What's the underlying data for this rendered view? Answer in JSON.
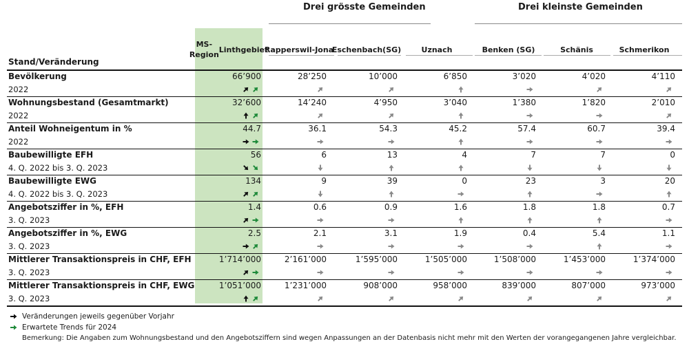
{
  "groups": {
    "largest": "Drei grösste Gemeinden",
    "smallest": "Drei kleinste Gemeinden"
  },
  "header": {
    "stand": "Stand/Veränderung",
    "columns": [
      {
        "line1": "MS-Region",
        "line2": "Linthgebiet"
      },
      {
        "line1": "Rapperswil-",
        "line2": "Jona"
      },
      {
        "line1": "Eschenbach",
        "line2": "(SG)"
      },
      {
        "line1": "Uznach",
        "line2": ""
      },
      {
        "line1": "Benken (SG)",
        "line2": ""
      },
      {
        "line1": "Schänis",
        "line2": ""
      },
      {
        "line1": "Schmerikon",
        "line2": ""
      }
    ]
  },
  "rows": [
    {
      "title": "Bevölkerung",
      "sub": "2022",
      "values": [
        "66’900",
        "28’250",
        "10’000",
        "6’850",
        "3’020",
        "4’020",
        "4’110"
      ],
      "region_arrows": [
        "ne",
        "ne"
      ],
      "arrows": [
        "ne",
        "ne",
        "n",
        "e",
        "ne",
        "ne"
      ]
    },
    {
      "title": "Wohnungsbestand (Gesamtmarkt)",
      "sub": "2022",
      "values": [
        "32’600",
        "14’240",
        "4’950",
        "3’040",
        "1’380",
        "1’820",
        "2’010"
      ],
      "region_arrows": [
        "n",
        "ne"
      ],
      "arrows": [
        "ne",
        "ne",
        "n",
        "e",
        "e",
        "ne"
      ]
    },
    {
      "title": "Anteil Wohneigentum in %",
      "sub": "2022",
      "values": [
        "44.7",
        "36.1",
        "54.3",
        "45.2",
        "57.4",
        "60.7",
        "39.4"
      ],
      "region_arrows": [
        "e",
        "e"
      ],
      "arrows": [
        "e",
        "e",
        "n",
        "e",
        "e",
        "e"
      ]
    },
    {
      "title": "Baubewilligte EFH",
      "sub": "4. Q. 2022 bis 3. Q. 2023",
      "values": [
        "56",
        "6",
        "13",
        "4",
        "7",
        "7",
        "0"
      ],
      "region_arrows": [
        "se",
        "se"
      ],
      "arrows": [
        "s",
        "n",
        "n",
        "s",
        "s",
        "s"
      ]
    },
    {
      "title": "Baubewilligte EWG",
      "sub": "4. Q. 2022 bis 3. Q. 2023",
      "values": [
        "134",
        "9",
        "39",
        "0",
        "23",
        "3",
        "20"
      ],
      "region_arrows": [
        "ne",
        "ne"
      ],
      "arrows": [
        "s",
        "n",
        "e",
        "n",
        "e",
        "n"
      ]
    },
    {
      "title": "Angebotsziffer in %, EFH",
      "sub": "3. Q. 2023",
      "values": [
        "1.4",
        "0.6",
        "0.9",
        "1.6",
        "1.8",
        "1.8",
        "0.7"
      ],
      "region_arrows": [
        "ne",
        "e"
      ],
      "arrows": [
        "e",
        "e",
        "n",
        "n",
        "n",
        "e"
      ]
    },
    {
      "title": "Angebotsziffer in %, EWG",
      "sub": "3. Q. 2023",
      "values": [
        "2.5",
        "2.1",
        "3.1",
        "1.9",
        "0.4",
        "5.4",
        "1.1"
      ],
      "region_arrows": [
        "e",
        "ne"
      ],
      "arrows": [
        "e",
        "e",
        "e",
        "e",
        "n",
        "e"
      ]
    },
    {
      "title": "Mittlerer Transaktionspreis in CHF, EFH",
      "sub": "3. Q. 2023",
      "values": [
        "1’714’000",
        "2’161’000",
        "1’595’000",
        "1’505’000",
        "1’508’000",
        "1’453’000",
        "1’374’000"
      ],
      "region_arrows": [
        "ne",
        "e"
      ],
      "arrows": [
        "e",
        "e",
        "e",
        "e",
        "e",
        "e"
      ]
    },
    {
      "title": "Mittlerer Transaktionspreis in CHF, EWG",
      "sub": "3. Q. 2023",
      "values": [
        "1’051’000",
        "1’231’000",
        "908’000",
        "958’000",
        "839’000",
        "807’000",
        "973’000"
      ],
      "region_arrows": [
        "n",
        "ne"
      ],
      "arrows": [
        "ne",
        "ne",
        "ne",
        "ne",
        "ne",
        "ne"
      ]
    }
  ],
  "footer": {
    "legend_black": "Veränderungen jeweils gegenüber Vorjahr",
    "legend_green": "Erwartete Trends für 2024",
    "note": "Bemerkung: Die Angaben zum Wohnungsbestand und den Angebotsziffern sind wegen Anpassungen an der Datenbasis nicht mehr mit den Werten der vorangegangenen Jahre vergleichbar."
  },
  "colors": {
    "region_highlight": "#cce4c0",
    "arrow_gray": "#8a8a8a",
    "arrow_black": "#111111",
    "arrow_green": "#1f8a3a"
  }
}
